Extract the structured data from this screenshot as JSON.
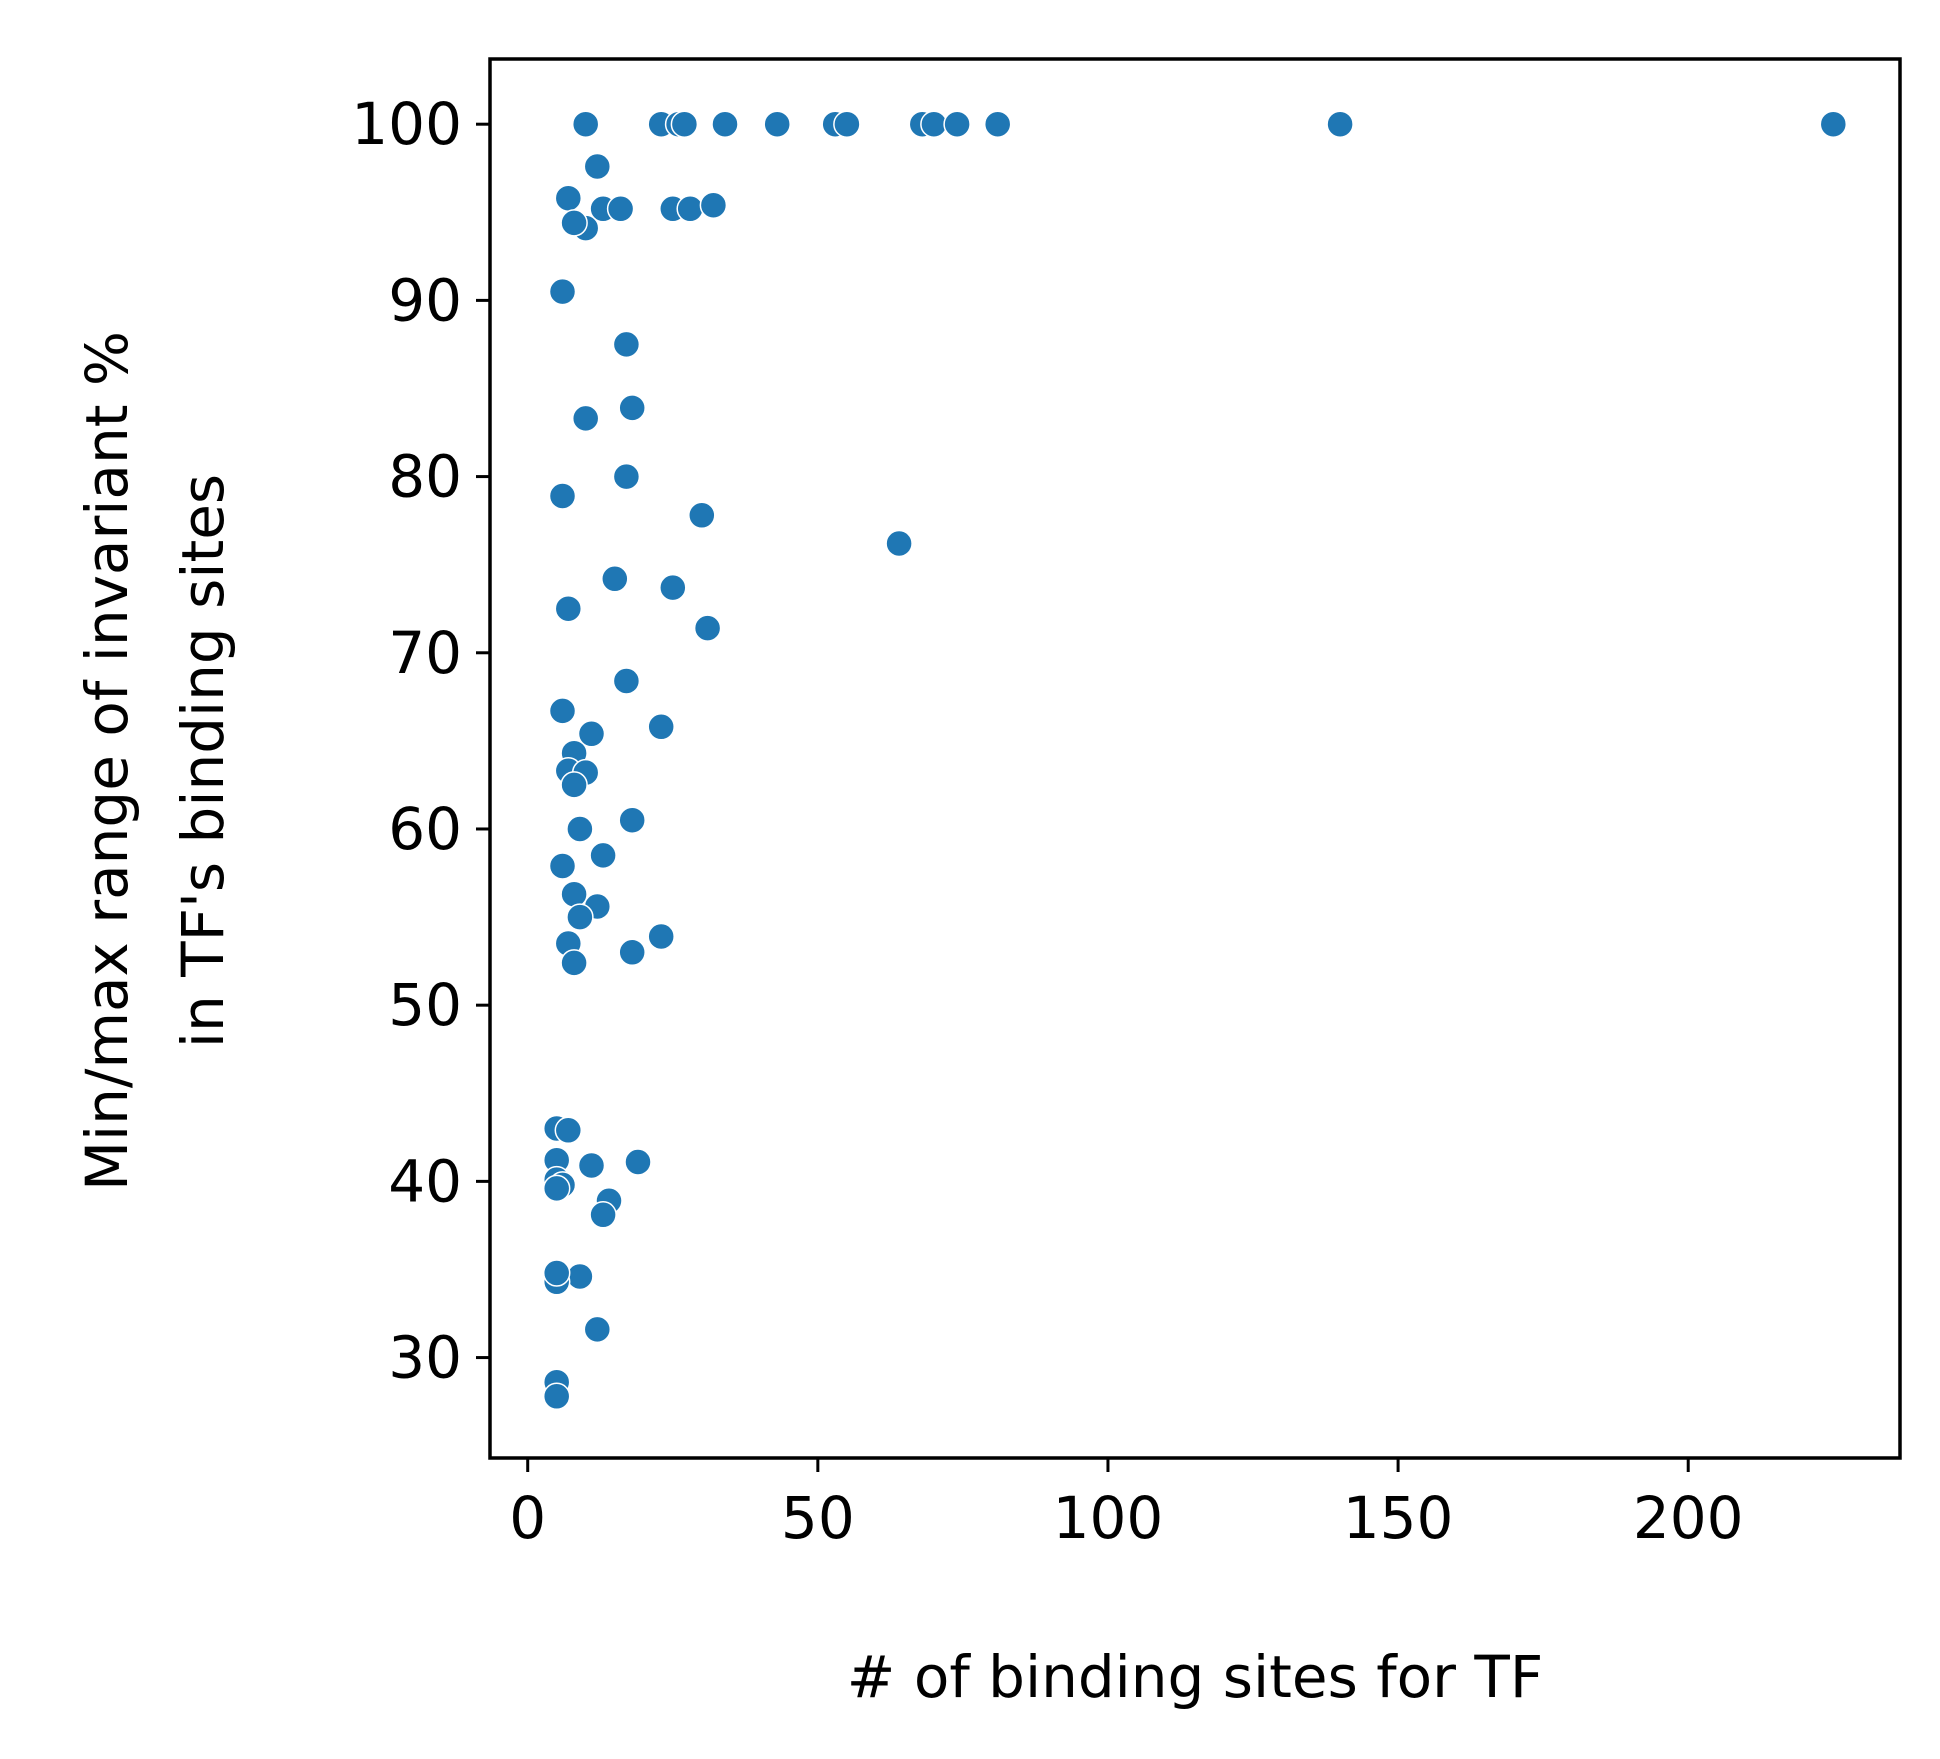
{
  "chart_data": {
    "type": "scatter",
    "title": "",
    "xlabel": "# of binding sites for TF",
    "ylabel": [
      "Min/max range of invariant %",
      "in TF's binding sites"
    ],
    "xlim": [
      -6.5,
      236.5
    ],
    "ylim": [
      24.3,
      103.7
    ],
    "xticks": [
      0,
      50,
      100,
      150,
      200
    ],
    "yticks": [
      30,
      40,
      50,
      60,
      70,
      80,
      90,
      100
    ],
    "grid": false,
    "legend": "none",
    "marker_color": "#1f77b4",
    "points": [
      {
        "x": 10,
        "y": 100
      },
      {
        "x": 23,
        "y": 100
      },
      {
        "x": 26,
        "y": 100
      },
      {
        "x": 27,
        "y": 100
      },
      {
        "x": 34,
        "y": 100
      },
      {
        "x": 43,
        "y": 100
      },
      {
        "x": 53,
        "y": 100
      },
      {
        "x": 55,
        "y": 100
      },
      {
        "x": 68,
        "y": 100
      },
      {
        "x": 70,
        "y": 100
      },
      {
        "x": 74,
        "y": 100
      },
      {
        "x": 81,
        "y": 100
      },
      {
        "x": 140,
        "y": 100
      },
      {
        "x": 225,
        "y": 100
      },
      {
        "x": 12,
        "y": 97.6
      },
      {
        "x": 7,
        "y": 95.8
      },
      {
        "x": 13,
        "y": 95.2
      },
      {
        "x": 16,
        "y": 95.2
      },
      {
        "x": 25,
        "y": 95.2
      },
      {
        "x": 28,
        "y": 95.2
      },
      {
        "x": 32,
        "y": 95.4
      },
      {
        "x": 10,
        "y": 94.1
      },
      {
        "x": 8,
        "y": 94.4
      },
      {
        "x": 6,
        "y": 90.5
      },
      {
        "x": 17,
        "y": 87.5
      },
      {
        "x": 18,
        "y": 83.9
      },
      {
        "x": 10,
        "y": 83.3
      },
      {
        "x": 17,
        "y": 80
      },
      {
        "x": 6,
        "y": 78.9
      },
      {
        "x": 30,
        "y": 77.8
      },
      {
        "x": 64,
        "y": 76.2
      },
      {
        "x": 15,
        "y": 74.2
      },
      {
        "x": 25,
        "y": 73.7
      },
      {
        "x": 7,
        "y": 72.5
      },
      {
        "x": 31,
        "y": 71.4
      },
      {
        "x": 17,
        "y": 68.4
      },
      {
        "x": 6,
        "y": 66.7
      },
      {
        "x": 23,
        "y": 65.8
      },
      {
        "x": 11,
        "y": 65.4
      },
      {
        "x": 8,
        "y": 64.3
      },
      {
        "x": 7,
        "y": 63.3
      },
      {
        "x": 10,
        "y": 63.2
      },
      {
        "x": 8,
        "y": 62.5
      },
      {
        "x": 18,
        "y": 60.5
      },
      {
        "x": 9,
        "y": 60
      },
      {
        "x": 13,
        "y": 58.5
      },
      {
        "x": 6,
        "y": 57.9
      },
      {
        "x": 8,
        "y": 56.3
      },
      {
        "x": 12,
        "y": 55.6
      },
      {
        "x": 9,
        "y": 55
      },
      {
        "x": 23,
        "y": 53.9
      },
      {
        "x": 7,
        "y": 53.5
      },
      {
        "x": 18,
        "y": 53
      },
      {
        "x": 8,
        "y": 52.4
      },
      {
        "x": 5,
        "y": 43
      },
      {
        "x": 7,
        "y": 42.9
      },
      {
        "x": 5,
        "y": 41.2
      },
      {
        "x": 19,
        "y": 41.1
      },
      {
        "x": 11,
        "y": 40.9
      },
      {
        "x": 5,
        "y": 40.1
      },
      {
        "x": 6,
        "y": 39.8
      },
      {
        "x": 5,
        "y": 39.6
      },
      {
        "x": 14,
        "y": 38.9
      },
      {
        "x": 13,
        "y": 38.1
      },
      {
        "x": 9,
        "y": 34.6
      },
      {
        "x": 5,
        "y": 34.3
      },
      {
        "x": 5,
        "y": 34.8
      },
      {
        "x": 12,
        "y": 31.6
      },
      {
        "x": 5,
        "y": 28.6
      },
      {
        "x": 5,
        "y": 27.8
      }
    ]
  }
}
